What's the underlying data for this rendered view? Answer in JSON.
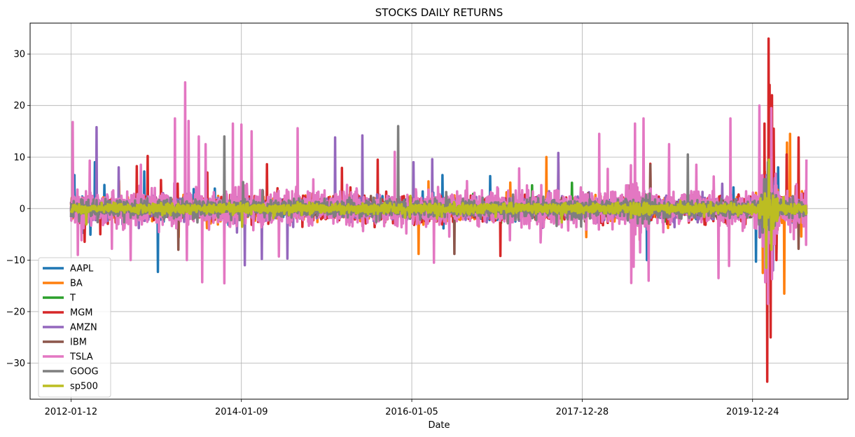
{
  "chart_data": {
    "type": "line",
    "title": "STOCKS DAILY RETURNS",
    "xlabel": "Date",
    "ylabel": "",
    "x_tick_labels": [
      "2012-01-12",
      "2014-01-09",
      "2016-01-05",
      "2017-12-28",
      "2019-12-24"
    ],
    "x_tick_index": [
      0,
      500,
      1000,
      1500,
      2000
    ],
    "x_range": [
      -120,
      2280
    ],
    "n_points": 2159,
    "ylim": [
      -37,
      36
    ],
    "y_ticks": [
      -30,
      -20,
      -10,
      0,
      10,
      20,
      30
    ],
    "grid": true,
    "legend_position": "lower-left",
    "series": [
      {
        "name": "AAPL",
        "color": "#1f77b4",
        "spikes": [
          [
            10,
            6.5
          ],
          [
            70,
            9.0
          ],
          [
            255,
            -12.3
          ],
          [
            215,
            7.2
          ],
          [
            1090,
            6.5
          ],
          [
            1230,
            6.3
          ],
          [
            1690,
            -10.0
          ],
          [
            2010,
            -10.3
          ],
          [
            2075,
            8.0
          ]
        ]
      },
      {
        "name": "BA",
        "color": "#ff7f0e",
        "spikes": [
          [
            1020,
            -8.8
          ],
          [
            1395,
            10.0
          ],
          [
            2030,
            -12.5
          ],
          [
            2055,
            14.7
          ],
          [
            2093,
            -16.5
          ],
          [
            2101,
            12.8
          ],
          [
            2110,
            14.5
          ]
        ]
      },
      {
        "name": "T",
        "color": "#2ca02c",
        "spikes": [
          [
            1470,
            5.0
          ],
          [
            1650,
            -6.0
          ],
          [
            2030,
            5.5
          ],
          [
            2070,
            -8.0
          ]
        ]
      },
      {
        "name": "MGM",
        "color": "#d62728",
        "spikes": [
          [
            225,
            10.2
          ],
          [
            400,
            7.0
          ],
          [
            575,
            8.6
          ],
          [
            795,
            7.9
          ],
          [
            900,
            9.5
          ],
          [
            1260,
            -9.2
          ],
          [
            1430,
            9.0
          ],
          [
            1700,
            8.7
          ],
          [
            2035,
            16.5
          ],
          [
            2043,
            -33.6
          ],
          [
            2047,
            33.0
          ],
          [
            2050,
            24.0
          ],
          [
            2053,
            -25.0
          ],
          [
            2057,
            22.0
          ],
          [
            2062,
            15.5
          ],
          [
            2070,
            -10.0
          ],
          [
            2100,
            10.5
          ],
          [
            2135,
            13.8
          ]
        ]
      },
      {
        "name": "AMZN",
        "color": "#9467bd",
        "spikes": [
          [
            75,
            15.8
          ],
          [
            140,
            8.0
          ],
          [
            510,
            -11.0
          ],
          [
            560,
            -9.8
          ],
          [
            635,
            -9.7
          ],
          [
            775,
            13.8
          ],
          [
            855,
            14.2
          ],
          [
            1005,
            9.0
          ],
          [
            1060,
            9.6
          ],
          [
            1430,
            10.8
          ],
          [
            2060,
            -12.0
          ]
        ]
      },
      {
        "name": "IBM",
        "color": "#8c564b",
        "spikes": [
          [
            315,
            -8.0
          ],
          [
            1125,
            -8.8
          ],
          [
            1700,
            8.5
          ],
          [
            2135,
            -7.8
          ]
        ]
      },
      {
        "name": "TSLA",
        "color": "#e377c2",
        "spikes": [
          [
            5,
            16.8
          ],
          [
            20,
            -9.0
          ],
          [
            55,
            9.3
          ],
          [
            120,
            -7.8
          ],
          [
            175,
            -10.0
          ],
          [
            205,
            8.5
          ],
          [
            305,
            17.5
          ],
          [
            335,
            24.5
          ],
          [
            340,
            -10.0
          ],
          [
            345,
            17.0
          ],
          [
            375,
            14.0
          ],
          [
            385,
            -14.3
          ],
          [
            395,
            12.5
          ],
          [
            450,
            -14.5
          ],
          [
            475,
            16.5
          ],
          [
            500,
            16.3
          ],
          [
            530,
            15.0
          ],
          [
            610,
            -9.3
          ],
          [
            665,
            15.6
          ],
          [
            950,
            11.0
          ],
          [
            1065,
            -10.5
          ],
          [
            1315,
            7.8
          ],
          [
            1550,
            14.5
          ],
          [
            1575,
            7.7
          ],
          [
            1655,
            16.5
          ],
          [
            1670,
            -8.5
          ],
          [
            1680,
            17.5
          ],
          [
            1695,
            -14.0
          ],
          [
            1755,
            12.5
          ],
          [
            1835,
            8.5
          ],
          [
            1900,
            -13.5
          ],
          [
            1935,
            17.5
          ],
          [
            2020,
            20.0
          ],
          [
            2045,
            -18.5
          ],
          [
            2055,
            19.5
          ]
        ]
      },
      {
        "name": "GOOG",
        "color": "#7f7f7f",
        "spikes": [
          [
            450,
            14.0
          ],
          [
            960,
            16.0
          ],
          [
            1810,
            10.5
          ],
          [
            2045,
            9.0
          ]
        ]
      },
      {
        "name": "sp500",
        "color": "#bcbd22",
        "spikes": [
          [
            2040,
            -11.5
          ],
          [
            2048,
            9.5
          ],
          [
            2055,
            -8.0
          ]
        ]
      }
    ]
  }
}
